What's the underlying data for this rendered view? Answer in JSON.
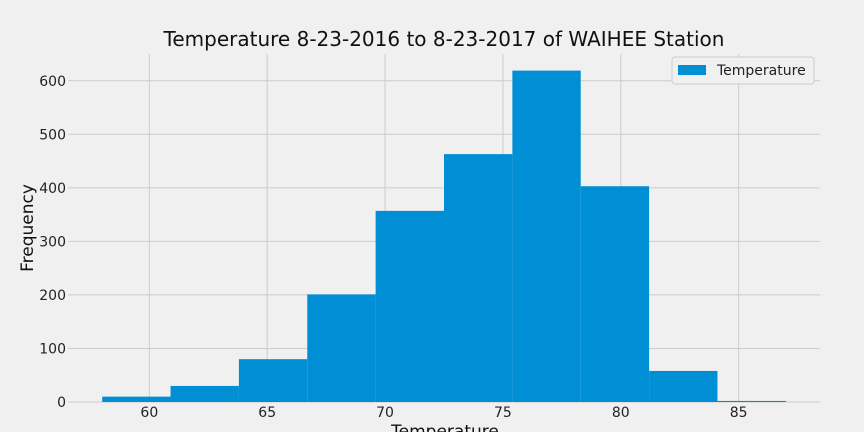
{
  "chart_data": {
    "type": "bar",
    "title": "Temperature 8-23-2016 to 8-23-2017 of WAIHEE Station",
    "xlabel": "Temperature",
    "ylabel": "Frequency",
    "xlim": [
      56.55,
      88.45
    ],
    "ylim": [
      0,
      650
    ],
    "x_ticks": [
      60,
      65,
      70,
      75,
      80,
      85
    ],
    "y_ticks": [
      0,
      100,
      200,
      300,
      400,
      500,
      600
    ],
    "bin_edges": [
      58.0,
      60.9,
      63.8,
      66.7,
      69.6,
      72.5,
      75.4,
      78.3,
      81.2,
      84.1,
      87.0
    ],
    "series": [
      {
        "name": "Temperature",
        "values": [
          10,
          30,
          80,
          201,
          357,
          463,
          619,
          403,
          58,
          2
        ]
      }
    ],
    "grid": true,
    "legend_position": "top-right",
    "colors": {
      "bar": "#008fd5",
      "background": "#f0f0f0",
      "grid": "#cbcbcb",
      "text": "#222222"
    }
  }
}
